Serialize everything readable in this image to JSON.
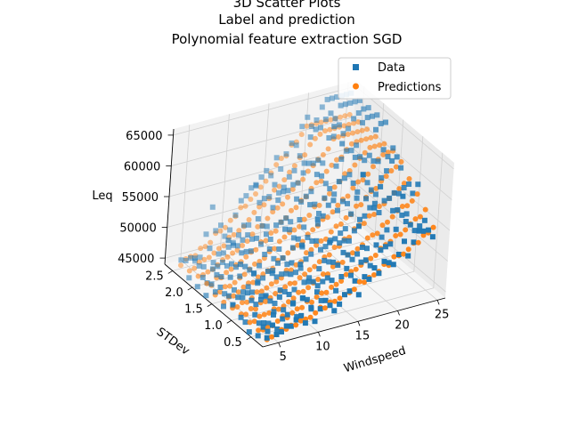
{
  "chart_data": {
    "type": "scatter",
    "projection": "3d",
    "title_lines": [
      "3D Scatter Plots",
      "Label and prediction",
      "Polynomial feature extraction SGD"
    ],
    "xlabel": "Windspeed",
    "ylabel": "STDev",
    "zlabel": "Leq",
    "xlim": [
      3,
      26
    ],
    "ylim": [
      0.2,
      2.7
    ],
    "zlim": [
      44000,
      66000
    ],
    "xticks": [
      "5",
      "10",
      "15",
      "20",
      "25"
    ],
    "yticks": [
      "0.5",
      "1.0",
      "1.5",
      "2.0",
      "2.5"
    ],
    "zticks": [
      "45000",
      "50000",
      "55000",
      "60000",
      "65000"
    ],
    "grid": true,
    "legend_position": "top-right",
    "series": [
      {
        "name": "Data",
        "marker": "square",
        "color": "#1f77b4"
      },
      {
        "name": "Predictions",
        "marker": "circle",
        "color": "#ff7f0e"
      }
    ]
  }
}
